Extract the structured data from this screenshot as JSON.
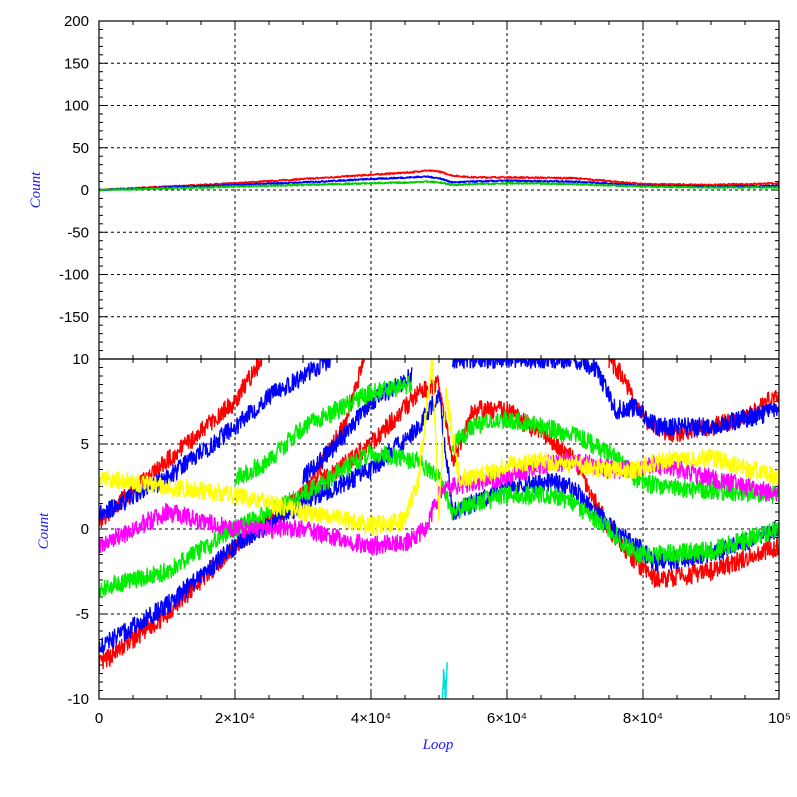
{
  "chart_data": [
    {
      "type": "line",
      "panel": "top",
      "ylabel": "Count",
      "xlim": [
        0,
        100000
      ],
      "ylim": [
        -200,
        200
      ],
      "y_ticks": [
        "200",
        "150",
        "100",
        "50",
        "0",
        "-50",
        "-100",
        "-150"
      ],
      "y_tick_values": [
        200,
        150,
        100,
        50,
        0,
        -50,
        -100,
        -150
      ],
      "grid": true,
      "series": [
        {
          "color": "#ff0000",
          "x": [
            0,
            10000,
            20000,
            30000,
            40000,
            46000,
            48000,
            50000,
            52000,
            55000,
            60000,
            70000,
            80000,
            90000,
            100000
          ],
          "y": [
            0,
            4,
            8,
            13,
            18,
            21,
            23,
            22,
            17,
            15,
            15,
            14,
            7,
            6,
            8
          ]
        },
        {
          "color": "#0000ff",
          "x": [
            0,
            10000,
            20000,
            30000,
            40000,
            46000,
            48000,
            50000,
            52000,
            55000,
            60000,
            70000,
            80000,
            90000,
            100000
          ],
          "y": [
            0,
            3,
            6,
            9,
            13,
            15,
            16,
            14,
            9,
            10,
            11,
            10,
            5,
            4,
            5
          ]
        },
        {
          "color": "#00cc00",
          "x": [
            0,
            10000,
            20000,
            30000,
            40000,
            46000,
            48000,
            50000,
            52000,
            55000,
            60000,
            70000,
            80000,
            90000,
            100000
          ],
          "y": [
            0,
            2,
            4,
            6,
            8,
            9,
            10,
            9,
            6,
            7,
            8,
            7,
            4,
            3,
            3
          ]
        }
      ]
    },
    {
      "type": "line",
      "panel": "bottom",
      "xlabel": "Loop",
      "ylabel": "Count",
      "xlim": [
        0,
        100000
      ],
      "ylim": [
        -10,
        10
      ],
      "x_ticks": [
        "0",
        "2×10⁴",
        "4×10⁴",
        "6×10⁴",
        "8×10⁴",
        "10⁵"
      ],
      "x_tick_values": [
        0,
        20000,
        40000,
        60000,
        80000,
        100000
      ],
      "y_ticks": [
        "10",
        "5",
        "0",
        "-5",
        "-10"
      ],
      "y_tick_values": [
        10,
        5,
        0,
        -5,
        -10
      ],
      "grid": true,
      "series": [
        {
          "color": "#ff0000",
          "x": [
            0,
            10000,
            20000,
            30000,
            40000,
            47000,
            50000,
            52000,
            55000,
            60000,
            67000,
            70000,
            75000,
            79000,
            82000,
            90000,
            100000
          ],
          "y": [
            -8,
            -5,
            -1,
            2,
            5,
            8,
            8.5,
            4,
            7,
            7,
            5,
            4,
            0,
            -2,
            -3,
            -2.5,
            -1
          ]
        },
        {
          "color": "#ff0000",
          "x": [
            0,
            10000,
            20000,
            22000,
            24000
          ],
          "y": [
            0.5,
            4,
            7.5,
            8.8,
            10
          ]
        },
        {
          "color": "#ff0000",
          "x": [
            30000,
            36000,
            39000
          ],
          "y": [
            2,
            6,
            10
          ]
        },
        {
          "color": "#ff0000",
          "x": [
            75000,
            77000,
            80000,
            84000,
            90000,
            95000,
            100000
          ],
          "y": [
            10,
            9,
            6.5,
            5.6,
            6,
            6.5,
            8
          ]
        },
        {
          "color": "#0000ff",
          "x": [
            0,
            10000,
            20000,
            30000,
            40000,
            47000,
            50000,
            52000,
            55000,
            60000,
            67000,
            70000,
            75000,
            79000,
            82000,
            90000,
            100000
          ],
          "y": [
            -7,
            -4.5,
            -1,
            1.5,
            3.5,
            6,
            8,
            1,
            1.5,
            2.5,
            2.8,
            2.3,
            0.2,
            -1,
            -2,
            -1.5,
            0
          ]
        },
        {
          "color": "#0000ff",
          "x": [
            0,
            10000,
            20000,
            25000,
            30000,
            34000
          ],
          "y": [
            0.8,
            3,
            6,
            7.8,
            9,
            10
          ]
        },
        {
          "color": "#0000ff",
          "x": [
            30000,
            35000,
            40000,
            46000
          ],
          "y": [
            3,
            5,
            7.5,
            9
          ]
        },
        {
          "color": "#0000ff",
          "x": [
            52000,
            60000,
            70000,
            73000,
            76000,
            79000,
            82000,
            90000,
            100000
          ],
          "y": [
            10,
            10,
            10,
            9.5,
            7,
            7.2,
            6,
            6,
            7
          ]
        },
        {
          "color": "#00ee00",
          "x": [
            0,
            10000,
            20000,
            30000,
            40000,
            47000,
            50000,
            52000,
            55000,
            60000,
            67000,
            70000,
            75000,
            79000,
            82000,
            90000,
            100000
          ],
          "y": [
            -3.5,
            -2.5,
            0,
            2,
            4.5,
            4,
            3,
            1,
            1.5,
            2,
            2,
            1.5,
            0,
            -1.5,
            -1.5,
            -1.3,
            0
          ]
        },
        {
          "color": "#00ee00",
          "x": [
            20000,
            25000,
            30000,
            35000,
            40000,
            46000
          ],
          "y": [
            3,
            4,
            6,
            7,
            8,
            8.5
          ]
        },
        {
          "color": "#00ee00",
          "x": [
            52000,
            55000,
            60000,
            65000,
            70000,
            75000,
            79000,
            82000,
            90000,
            100000
          ],
          "y": [
            5,
            6,
            6.5,
            6,
            5.5,
            4.5,
            3,
            2.5,
            2.3,
            2
          ]
        },
        {
          "color": "#ff00ff",
          "x": [
            0,
            10000,
            20000,
            30000,
            40000,
            45000,
            48000,
            50000,
            52000,
            55000,
            60000,
            65000,
            70000,
            75000,
            79000,
            82000,
            90000,
            100000
          ],
          "y": [
            -1,
            1,
            0,
            0,
            -1,
            -0.8,
            0,
            2,
            2.5,
            2.8,
            3,
            3.8,
            4,
            3.5,
            3.5,
            3.8,
            3,
            2
          ]
        },
        {
          "color": "#ffff00",
          "x": [
            0,
            10000,
            20000,
            30000,
            40000,
            45000,
            47000,
            49000,
            50000,
            51000,
            53000,
            55000,
            60000,
            65000,
            70000,
            75000,
            79000,
            82000,
            90000,
            100000
          ],
          "y": [
            3,
            2.5,
            2,
            1,
            0.2,
            0.5,
            3,
            10,
            1,
            8,
            3,
            3,
            3.8,
            4,
            3.8,
            3.5,
            3.5,
            4,
            4.2,
            3
          ]
        },
        {
          "color": "#00dddd",
          "x": [
            50500,
            50700,
            51000,
            51200
          ],
          "y": [
            -9.8,
            -8.5,
            -9.8,
            -8
          ]
        }
      ]
    }
  ]
}
